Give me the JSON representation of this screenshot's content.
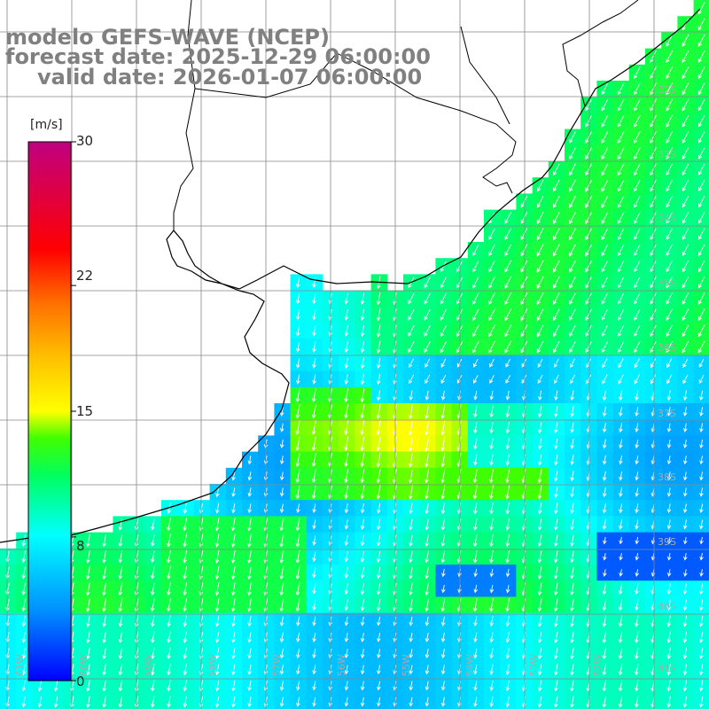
{
  "title": {
    "line1": "modelo GEFS-WAVE (NCEP)",
    "line2": "forecast date: 2025-12-29 06:00:00",
    "line3": "valid date: 2026-01-07 06:00:00"
  },
  "colorbar": {
    "unit": "[m/s]",
    "ticks": [
      "30",
      "22",
      "15",
      "8",
      "0"
    ],
    "tick_values": [
      30,
      22,
      15,
      8,
      0
    ],
    "range": [
      0,
      30
    ]
  },
  "axes": {
    "lat_labels": [
      "32S",
      "33S",
      "34S",
      "35S",
      "36S",
      "37S",
      "38S",
      "39S",
      "40S",
      "41S"
    ],
    "lon_labels": [
      "61W",
      "60W",
      "59W",
      "58W",
      "57W",
      "56W",
      "55W",
      "54W",
      "53W",
      "52W"
    ]
  },
  "colors": {
    "background": "#ffffff",
    "title": "#808080",
    "grid": "#888888",
    "coast": "#000000",
    "arrow": "#ffffff"
  }
}
